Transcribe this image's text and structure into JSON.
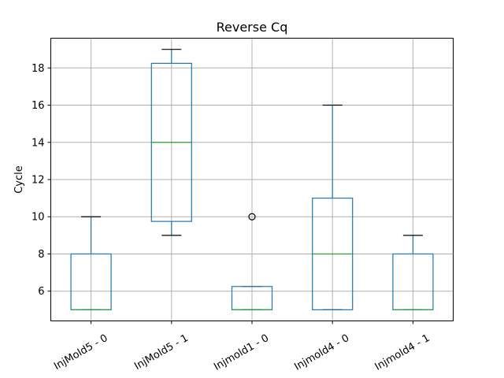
{
  "chart_data": {
    "type": "box",
    "title": "Reverse Cq",
    "ylabel": "Cycle",
    "xlabel": "",
    "ylim": [
      4.4,
      19.6
    ],
    "yticks": [
      6,
      8,
      10,
      12,
      14,
      16,
      18
    ],
    "grid": true,
    "categories": [
      "InjMold5 - 0",
      "InjMold5 - 1",
      "Injmold1 - 0",
      "Injmold4 - 0",
      "Injmold4 - 1"
    ],
    "boxes": [
      {
        "label": "InjMold5 - 0",
        "whislo": 5,
        "q1": 5,
        "med": 5,
        "q3": 8,
        "whishi": 10,
        "fliers": []
      },
      {
        "label": "InjMold5 - 1",
        "whislo": 9,
        "q1": 9.75,
        "med": 14,
        "q3": 18.25,
        "whishi": 19,
        "fliers": []
      },
      {
        "label": "Injmold1 - 0",
        "whislo": 5,
        "q1": 5,
        "med": 5,
        "q3": 6.25,
        "whishi": 6.25,
        "fliers": [
          10
        ]
      },
      {
        "label": "Injmold4 - 0",
        "whislo": 5,
        "q1": 5,
        "med": 8,
        "q3": 11,
        "whishi": 16,
        "fliers": []
      },
      {
        "label": "Injmold4 - 1",
        "whislo": 5,
        "q1": 5,
        "med": 5,
        "q3": 8,
        "whishi": 9,
        "fliers": []
      }
    ],
    "colors": {
      "box": "#1f77b4",
      "median": "#2ca02c",
      "cap": "#000000",
      "grid": "#b0b0b0"
    }
  }
}
